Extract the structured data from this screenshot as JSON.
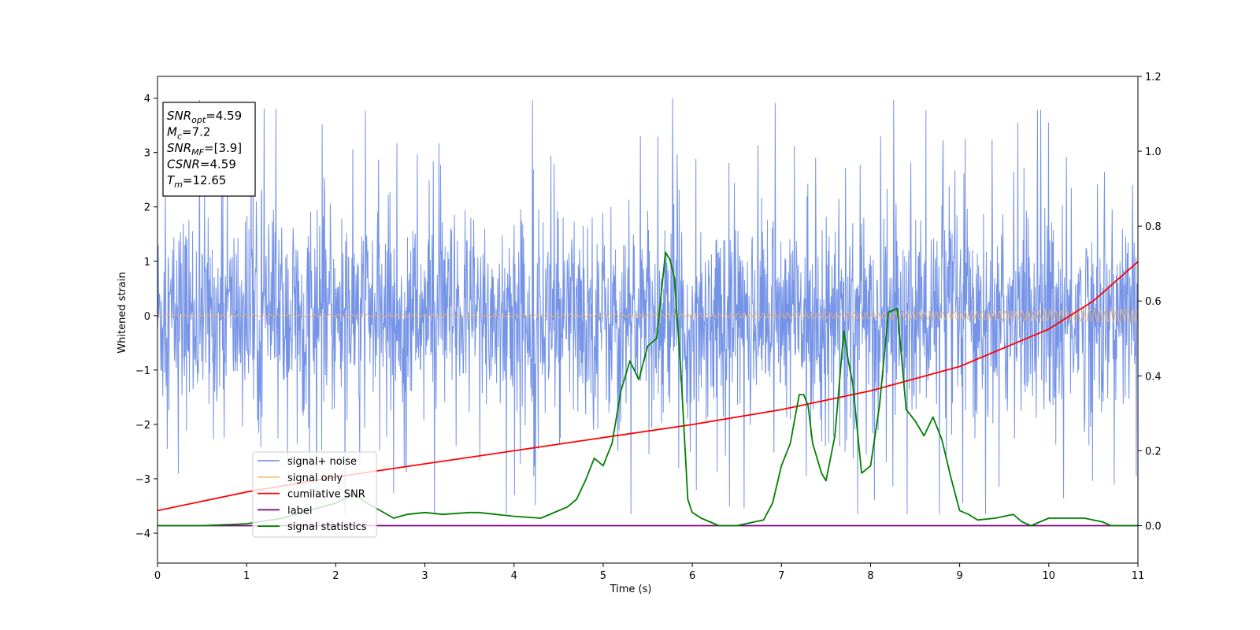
{
  "chart_data": {
    "type": "line",
    "xlabel": "Time (s)",
    "ylabel": "Whitened strain",
    "xlim": [
      0,
      11
    ],
    "ylim_left": [
      -4.55,
      4.4
    ],
    "ylim_right": [
      -0.1,
      1.2
    ],
    "x_ticks": [
      "0",
      "1",
      "2",
      "3",
      "4",
      "5",
      "6",
      "7",
      "8",
      "9",
      "10",
      "11"
    ],
    "y_ticks_left": [
      "4",
      "3",
      "2",
      "1",
      "0",
      "−1",
      "−2",
      "−3",
      "−4"
    ],
    "y_ticks_right": [
      "1.2",
      "1.0",
      "0.8",
      "0.6",
      "0.4",
      "0.2",
      "0.0"
    ],
    "info_box": [
      {
        "main": "SNR",
        "sub": "opt",
        "value": "=4.59"
      },
      {
        "main": "M",
        "sub": "c",
        "value": "=7.2"
      },
      {
        "main": "SNR",
        "sub": "MF",
        "value": "=[3.9]"
      },
      {
        "main": "CSNR",
        "sub": "",
        "value": "=4.59"
      },
      {
        "main": "T",
        "sub": "m",
        "value": "=12.65"
      }
    ],
    "legend": {
      "placement": "lower-left",
      "entries": [
        {
          "label": "signal+ noise",
          "color": "#7b96e8"
        },
        {
          "label": "signal only",
          "color": "#f5c37d"
        },
        {
          "label": "cumilative SNR",
          "color": "#ff0000"
        },
        {
          "label": "label",
          "color": "#800080"
        },
        {
          "label": "signal statistics",
          "color": "#008000"
        }
      ]
    },
    "series": [
      {
        "name": "signal+ noise",
        "axis": "left",
        "color": "#6f8ee6",
        "description_values": {
          "mean": 0,
          "std": 1.1,
          "max_spike": 4.0,
          "min_spike": -3.65
        }
      },
      {
        "name": "signal only",
        "axis": "left",
        "color": "#f0b370",
        "amplitude_start": 0.02,
        "amplitude_end": 0.12
      },
      {
        "name": "cumilative SNR",
        "axis": "right",
        "color": "#ff0000",
        "x": [
          0,
          1,
          2,
          3,
          4,
          5,
          6,
          7,
          8,
          9,
          10,
          10.5,
          11
        ],
        "y": [
          0.04,
          0.09,
          0.13,
          0.165,
          0.2,
          0.235,
          0.27,
          0.31,
          0.36,
          0.425,
          0.525,
          0.6,
          0.705
        ]
      },
      {
        "name": "label",
        "axis": "right",
        "color": "#800080",
        "x": [
          0,
          11
        ],
        "y": [
          0.0,
          0.0
        ]
      },
      {
        "name": "signal statistics",
        "axis": "right",
        "color": "#008000",
        "x": [
          0,
          0.5,
          1.0,
          1.4,
          1.7,
          2.0,
          2.2,
          2.35,
          2.5,
          2.65,
          2.8,
          3.0,
          3.2,
          3.5,
          3.6,
          4.0,
          4.3,
          4.6,
          4.7,
          4.8,
          4.9,
          5.0,
          5.1,
          5.2,
          5.3,
          5.4,
          5.5,
          5.6,
          5.7,
          5.75,
          5.8,
          5.87,
          5.95,
          6.0,
          6.1,
          6.3,
          6.5,
          6.8,
          6.9,
          7.0,
          7.1,
          7.2,
          7.25,
          7.3,
          7.35,
          7.45,
          7.5,
          7.6,
          7.7,
          7.75,
          7.8,
          7.9,
          8.0,
          8.1,
          8.2,
          8.3,
          8.4,
          8.5,
          8.6,
          8.7,
          8.8,
          8.9,
          9.0,
          9.1,
          9.2,
          9.4,
          9.6,
          9.7,
          9.8,
          10.0,
          10.4,
          10.6,
          10.7,
          11.0
        ],
        "y": [
          0.0,
          0.0,
          0.005,
          0.02,
          0.04,
          0.06,
          0.085,
          0.06,
          0.04,
          0.02,
          0.03,
          0.035,
          0.03,
          0.035,
          0.035,
          0.025,
          0.02,
          0.05,
          0.07,
          0.12,
          0.18,
          0.16,
          0.22,
          0.36,
          0.44,
          0.39,
          0.48,
          0.5,
          0.73,
          0.71,
          0.66,
          0.42,
          0.07,
          0.035,
          0.02,
          0.0,
          0.0,
          0.015,
          0.06,
          0.16,
          0.22,
          0.35,
          0.35,
          0.32,
          0.22,
          0.14,
          0.12,
          0.24,
          0.52,
          0.44,
          0.38,
          0.14,
          0.16,
          0.32,
          0.57,
          0.58,
          0.31,
          0.28,
          0.24,
          0.29,
          0.23,
          0.13,
          0.04,
          0.03,
          0.015,
          0.02,
          0.03,
          0.01,
          0.0,
          0.02,
          0.02,
          0.01,
          0.0,
          0.0
        ]
      }
    ]
  }
}
